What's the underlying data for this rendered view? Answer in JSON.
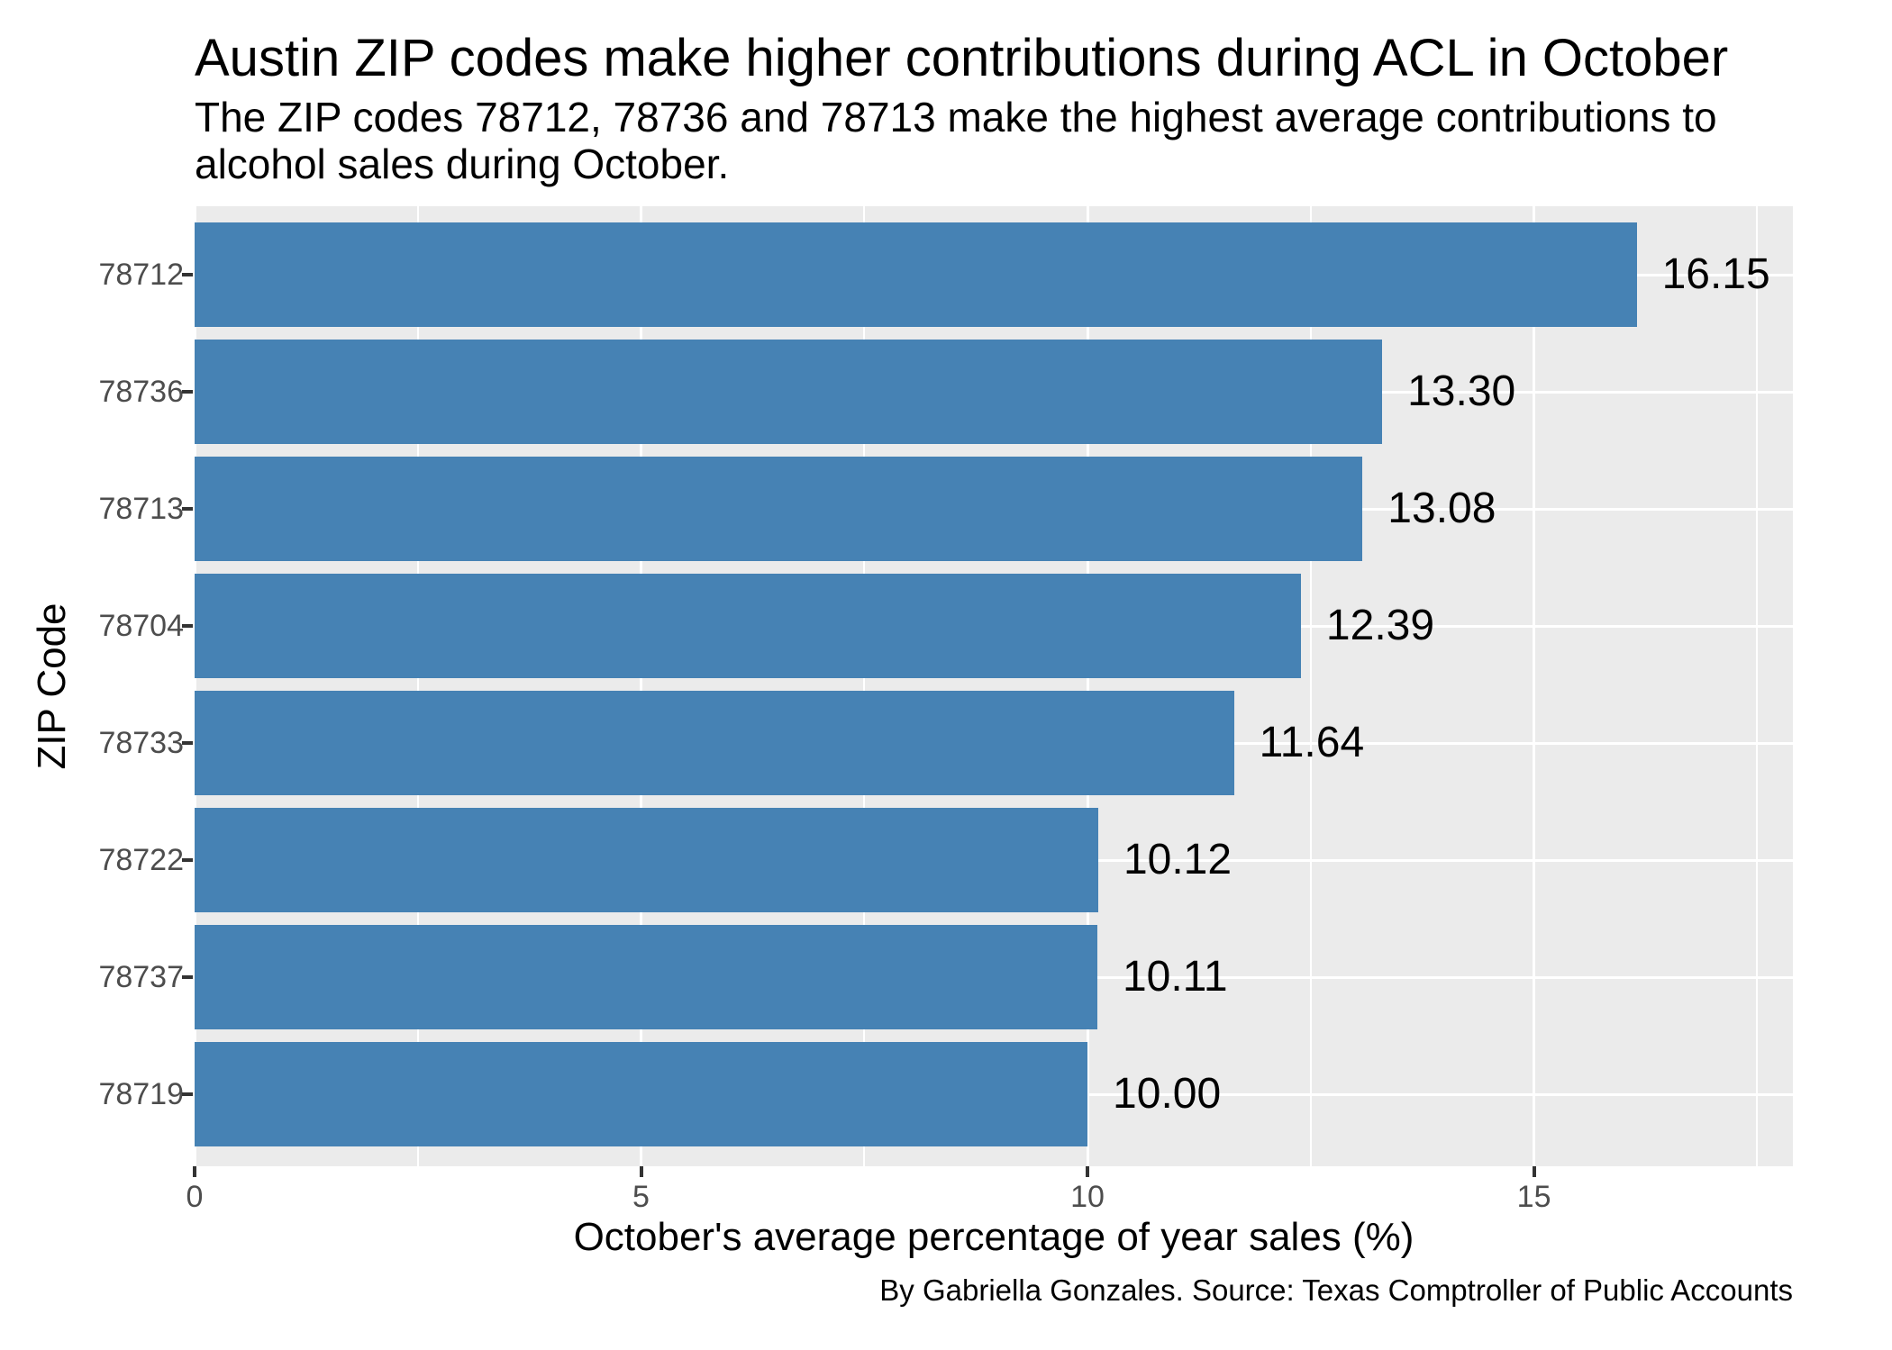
{
  "chart_data": {
    "type": "bar",
    "orientation": "horizontal",
    "title": "Austin ZIP codes make higher contributions during ACL in October",
    "subtitle_lines": [
      "The ZIP codes 78712, 78736 and 78713 make the highest average contributions to",
      "alcohol sales during October."
    ],
    "caption": "By Gabriella Gonzales. Source: Texas Comptroller of Public Accounts",
    "categories": [
      "78712",
      "78736",
      "78713",
      "78704",
      "78733",
      "78722",
      "78737",
      "78719"
    ],
    "values": [
      16.15,
      13.3,
      13.08,
      12.39,
      11.64,
      10.12,
      10.11,
      10.0
    ],
    "value_labels": [
      "16.15",
      "13.30",
      "13.08",
      "12.39",
      "11.64",
      "10.12",
      "10.11",
      "10.00"
    ],
    "xlabel": "October's average percentage of year sales (%)",
    "ylabel": "ZIP Code",
    "x_ticks": [
      0,
      5,
      10,
      15
    ],
    "x_minor_ticks": [
      2.5,
      7.5,
      12.5,
      17.5
    ],
    "xlim": [
      0,
      17.9
    ],
    "grid": "white major and minor vertical gridlines, white major horizontal gridlines on gray panel",
    "legend": "none",
    "colors": {
      "bar": "#4682B4",
      "panel_background": "#EBEBEB",
      "gridline": "#FFFFFF",
      "axis_text": "#4D4D4D",
      "tick_mark": "#333333",
      "text": "#000000"
    }
  }
}
